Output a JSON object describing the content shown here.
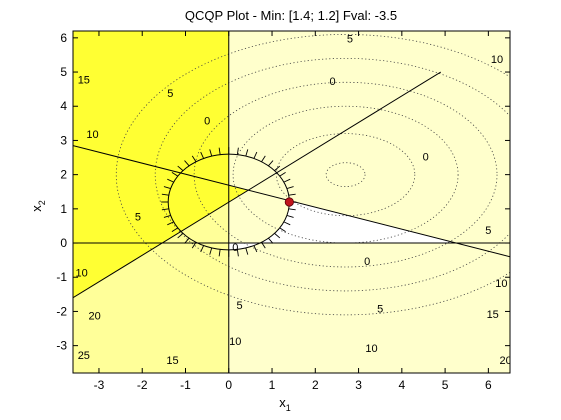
{
  "chart_data": {
    "type": "contour",
    "title": "QCQP Plot - Min: [1.4; 1.2]  Fval: -3.5",
    "xlabel": "x",
    "xlabel_sub": "1",
    "ylabel": "x",
    "ylabel_sub": "2",
    "xlim": [
      -3.6,
      6.5
    ],
    "ylim": [
      -3.8,
      6.2
    ],
    "xticks": [
      -3,
      -2,
      -1,
      0,
      1,
      2,
      3,
      4,
      5,
      6
    ],
    "yticks": [
      -3,
      -2,
      -1,
      0,
      1,
      2,
      3,
      4,
      5,
      6
    ],
    "minimizer": {
      "x": 1.4,
      "y": 1.2
    },
    "fval": -3.5,
    "objective_contours": {
      "center": {
        "x": 2.7,
        "y": 2.0
      },
      "radii_x": [
        0.45,
        1.6,
        2.6,
        3.5,
        4.4,
        5.3
      ],
      "radii_y": [
        0.35,
        1.2,
        2.0,
        2.7,
        3.4,
        4.1
      ],
      "labels": [
        "0",
        "5",
        "10",
        "15",
        "20",
        "25"
      ]
    },
    "constraints": [
      {
        "kind": "line",
        "p1": {
          "x": -3.6,
          "y": 2.85
        },
        "p2": {
          "x": 6.5,
          "y": -0.4
        }
      },
      {
        "kind": "line",
        "p1": {
          "x": -3.6,
          "y": -1.6
        },
        "p2": {
          "x": 4.9,
          "y": 5.0
        }
      },
      {
        "kind": "line",
        "p1": {
          "x": 0,
          "y": -3.8
        },
        "p2": {
          "x": 0,
          "y": 6.2
        }
      },
      {
        "kind": "line",
        "p1": {
          "x": -3.6,
          "y": 0
        },
        "p2": {
          "x": 6.5,
          "y": 0
        }
      },
      {
        "kind": "circle",
        "center": {
          "x": 0,
          "y": 1.2
        },
        "radius": 1.4
      }
    ],
    "contour_labels": [
      {
        "text": "5",
        "x": 2.8,
        "y": 5.95
      },
      {
        "text": "10",
        "x": 6.2,
        "y": 5.35
      },
      {
        "text": "15",
        "x": -3.35,
        "y": 4.75
      },
      {
        "text": "5",
        "x": -1.35,
        "y": 4.35
      },
      {
        "text": "0",
        "x": 2.4,
        "y": 4.7
      },
      {
        "text": "0",
        "x": -0.5,
        "y": 3.55
      },
      {
        "text": "0",
        "x": 4.55,
        "y": 2.5
      },
      {
        "text": "10",
        "x": -3.15,
        "y": 3.15
      },
      {
        "text": "5",
        "x": -2.1,
        "y": 0.75
      },
      {
        "text": "0",
        "x": 0.15,
        "y": -0.15
      },
      {
        "text": "0",
        "x": 3.2,
        "y": -0.55
      },
      {
        "text": "5",
        "x": 6.0,
        "y": 0.35
      },
      {
        "text": "10",
        "x": -3.4,
        "y": -0.9
      },
      {
        "text": "10",
        "x": 6.3,
        "y": -1.2
      },
      {
        "text": "5",
        "x": 0.25,
        "y": -1.85
      },
      {
        "text": "5",
        "x": 3.5,
        "y": -1.95
      },
      {
        "text": "20",
        "x": -3.1,
        "y": -2.15
      },
      {
        "text": "15",
        "x": 6.1,
        "y": -2.1
      },
      {
        "text": "10",
        "x": 0.15,
        "y": -2.9
      },
      {
        "text": "10",
        "x": 3.3,
        "y": -3.1
      },
      {
        "text": "25",
        "x": -3.35,
        "y": -3.3
      },
      {
        "text": "15",
        "x": -1.3,
        "y": -3.45
      },
      {
        "text": "20",
        "x": 6.4,
        "y": -3.45
      }
    ],
    "colors": {
      "background_light": "#ffffcc",
      "region_mid": "#ffff99",
      "region_bright": "#ffff33",
      "feasible": "#ffffff",
      "line": "#000000",
      "contour": "#444444",
      "marker": "#c0141c"
    }
  }
}
